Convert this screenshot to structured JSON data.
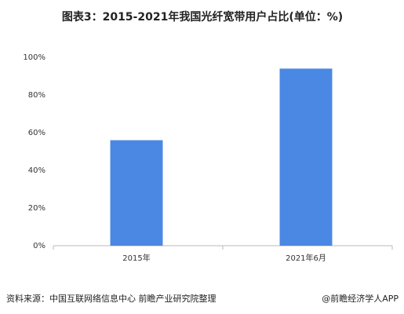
{
  "chart_data": {
    "type": "bar",
    "title": "图表3：2015-2021年我国光纤宽带用户占比(单位：%)",
    "categories": [
      "2015年",
      "2021年6月"
    ],
    "values": [
      56,
      94
    ],
    "color": "#4a88e4",
    "ylim": [
      0,
      100
    ],
    "yticks": [
      {
        "value": 0,
        "label": "0%"
      },
      {
        "value": 20,
        "label": "20%"
      },
      {
        "value": 40,
        "label": "40%"
      },
      {
        "value": 60,
        "label": "60%"
      },
      {
        "value": 80,
        "label": "80%"
      },
      {
        "value": 100,
        "label": "100%"
      }
    ],
    "grid": false
  },
  "source": "资料来源：中国互联网络信息中心 前瞻产业研究院整理",
  "credit": "@前瞻经济学人APP"
}
